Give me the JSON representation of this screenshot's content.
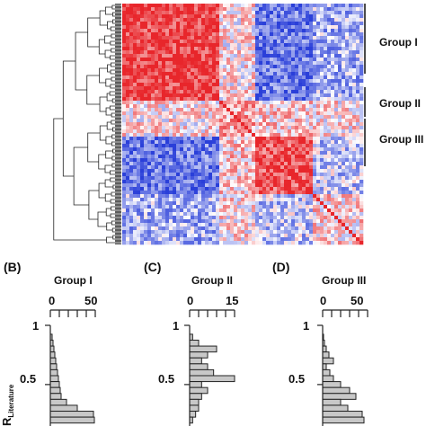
{
  "heatmap": {
    "groups": [
      {
        "label": "Group I",
        "start": 0.0,
        "end": 0.4
      },
      {
        "label": "Group II",
        "start": 0.4,
        "end": 0.55
      },
      {
        "label": "Group III",
        "start": 0.55,
        "end": 0.78
      }
    ]
  },
  "chart_data": [
    {
      "type": "heatmap",
      "title": "",
      "description_colors": {
        "negative": "#2a3fd9",
        "zero": "#ffffff",
        "positive": "#e8262b"
      },
      "groups": [
        "Group I",
        "Group II",
        "Group III"
      ]
    },
    {
      "type": "bar",
      "panel": "(B)",
      "title": "Group I",
      "orientation": "horizontal",
      "xlim": [
        0,
        50
      ],
      "xticks": [
        "0",
        "50"
      ],
      "ylabel": "R",
      "ylabel_sub": "Literature",
      "yticks": [
        "1",
        "0.5"
      ],
      "ylim": [
        0.15,
        1
      ],
      "bins": [
        0.95,
        0.9,
        0.85,
        0.8,
        0.75,
        0.7,
        0.65,
        0.6,
        0.55,
        0.5,
        0.45,
        0.4,
        0.35,
        0.3,
        0.25,
        0.2
      ],
      "values": [
        0,
        2,
        3,
        4,
        5,
        6,
        7,
        8,
        9,
        10,
        11,
        12,
        18,
        30,
        48,
        49
      ]
    },
    {
      "type": "bar",
      "panel": "(C)",
      "title": "Group II",
      "orientation": "horizontal",
      "xlim": [
        0,
        15
      ],
      "xticks": [
        "0",
        "15"
      ],
      "yticks": [
        "1",
        "0.5"
      ],
      "ylim": [
        0.15,
        1
      ],
      "bins": [
        0.95,
        0.9,
        0.85,
        0.8,
        0.75,
        0.7,
        0.65,
        0.6,
        0.55,
        0.5,
        0.45,
        0.4,
        0.35,
        0.3,
        0.25,
        0.2
      ],
      "values": [
        0,
        1,
        3,
        9,
        6,
        4,
        6,
        8,
        15,
        4,
        6,
        4,
        3,
        3,
        2,
        1
      ]
    },
    {
      "type": "bar",
      "panel": "(D)",
      "title": "Group III",
      "orientation": "horizontal",
      "xlim": [
        0,
        50
      ],
      "xticks": [
        "0",
        "50"
      ],
      "yticks": [
        "1",
        "0.5"
      ],
      "ylim": [
        0.15,
        1
      ],
      "bins": [
        0.95,
        0.9,
        0.85,
        0.8,
        0.75,
        0.7,
        0.65,
        0.6,
        0.55,
        0.5,
        0.45,
        0.4,
        0.35,
        0.3,
        0.25,
        0.2
      ],
      "values": [
        0,
        1,
        2,
        4,
        7,
        12,
        4,
        8,
        12,
        20,
        30,
        37,
        20,
        28,
        44,
        46
      ]
    }
  ]
}
